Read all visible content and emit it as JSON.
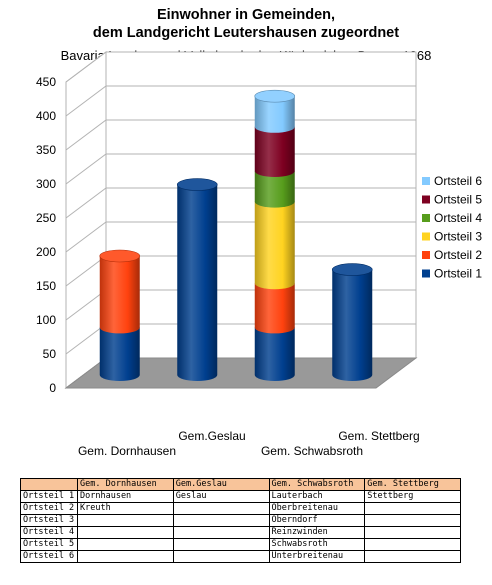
{
  "title_lines": [
    "Einwohner in Gemeinden,",
    "dem Landgericht Leutershausen zugeordnet"
  ],
  "subtitle": "Bavaria Landes- und Volkskunde des Königreiches Bayern 1868",
  "chart_data": {
    "type": "bar",
    "stacked": true,
    "three_d": true,
    "categories": [
      "Gem. Dornhausen",
      "Gem.Geslau",
      "Gem. Schwabsroth",
      "Gem. Stettberg"
    ],
    "series": [
      {
        "name": "Ortsteil 1",
        "color": "#003f8f",
        "values": [
          70,
          280,
          70,
          155
        ]
      },
      {
        "name": "Ortsteil 2",
        "color": "#ff420e",
        "values": [
          105,
          0,
          65,
          0
        ]
      },
      {
        "name": "Ortsteil 3",
        "color": "#ffd320",
        "values": [
          0,
          0,
          120,
          0
        ]
      },
      {
        "name": "Ortsteil 4",
        "color": "#579d1c",
        "values": [
          0,
          0,
          45,
          0
        ]
      },
      {
        "name": "Ortsteil 5",
        "color": "#7e0021",
        "values": [
          0,
          0,
          65,
          0
        ]
      },
      {
        "name": "Ortsteil 6",
        "color": "#83caff",
        "values": [
          0,
          0,
          45,
          0
        ]
      }
    ],
    "y_ticks": [
      "0",
      "50",
      "100",
      "150",
      "200",
      "250",
      "300",
      "350",
      "400",
      "450"
    ],
    "ylim": [
      0,
      450
    ],
    "grid": true,
    "legend_position": "right"
  },
  "table": {
    "headers": [
      "Gem. Dornhausen",
      "Gem.Geslau",
      "Gem. Schwabsroth",
      "Gem. Stettberg"
    ],
    "rows": [
      {
        "label": "Ortsteil 1",
        "cells": [
          "Dornhausen",
          "Geslau",
          "Lauterbach",
          "Stettberg"
        ]
      },
      {
        "label": "Ortsteil 2",
        "cells": [
          "Kreuth",
          "",
          "Oberbreitenau",
          ""
        ]
      },
      {
        "label": "Ortsteil 3",
        "cells": [
          "",
          "",
          "Oberndorf",
          ""
        ]
      },
      {
        "label": "Ortsteil 4",
        "cells": [
          "",
          "",
          "Reinzwinden",
          ""
        ]
      },
      {
        "label": "Ortsteil 5",
        "cells": [
          "",
          "",
          "Schwabsroth",
          ""
        ]
      },
      {
        "label": "Ortsteil 6",
        "cells": [
          "",
          "",
          "Unterbreitenau",
          ""
        ]
      }
    ]
  }
}
